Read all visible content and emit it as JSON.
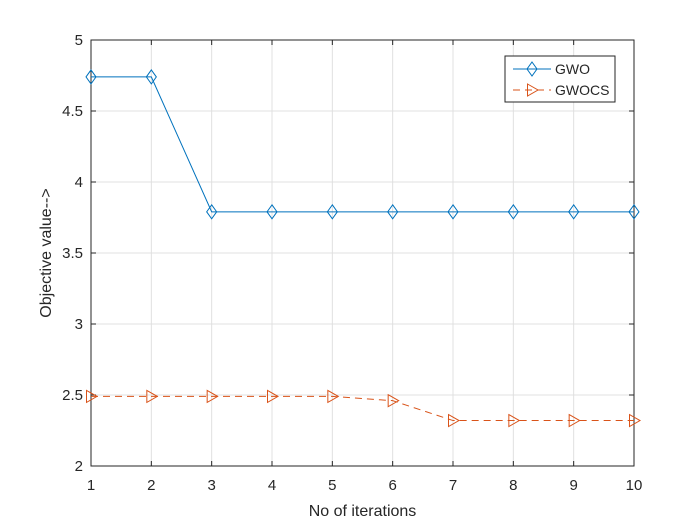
{
  "chart_data": {
    "type": "line",
    "title": "",
    "xlabel": "No of iterations",
    "ylabel": "Objective value-->",
    "x": [
      1,
      2,
      3,
      4,
      5,
      6,
      7,
      8,
      9,
      10
    ],
    "xlim": [
      1,
      10
    ],
    "ylim": [
      2,
      5
    ],
    "xticks": [
      "1",
      "2",
      "3",
      "4",
      "5",
      "6",
      "7",
      "8",
      "9",
      "10"
    ],
    "yticks": [
      "2",
      "2.5",
      "3",
      "3.5",
      "4",
      "4.5",
      "5"
    ],
    "grid": true,
    "legend_position": "top-right",
    "series": [
      {
        "name": "GWO",
        "values": [
          4.74,
          4.74,
          3.79,
          3.79,
          3.79,
          3.79,
          3.79,
          3.79,
          3.79,
          3.79
        ],
        "color": "#0072BD",
        "marker": "diamond",
        "line_style": "solid"
      },
      {
        "name": "GWOCS",
        "values": [
          2.49,
          2.49,
          2.49,
          2.49,
          2.49,
          2.46,
          2.32,
          2.32,
          2.32,
          2.32
        ],
        "color": "#D95319",
        "marker": "triangle-right",
        "line_style": "dashed"
      }
    ]
  }
}
